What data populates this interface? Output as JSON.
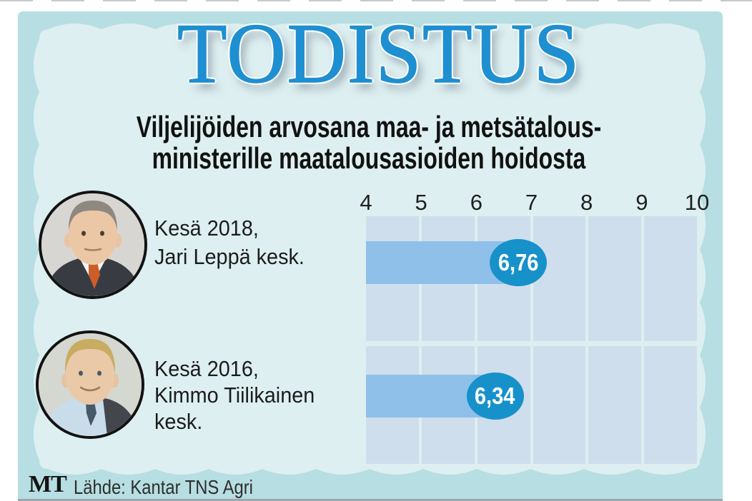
{
  "title": "TODISTUS",
  "subtitle": {
    "line1": "Viljelijöiden arvosana maa- ja metsätalous-",
    "line2": "ministerille maatalousasioiden hoidosta"
  },
  "chart_data": {
    "type": "bar",
    "orientation": "horizontal",
    "title": "TODISTUS",
    "subtitle": "Viljelijöiden arvosana maa- ja metsätalousministerille maatalousasioiden hoidosta",
    "xlim": [
      4,
      10
    ],
    "x_tick_labels": [
      "4",
      "5",
      "6",
      "7",
      "8",
      "9",
      "10"
    ],
    "grid": true,
    "legend": false,
    "categories": [
      "Kesä 2018, Jari Leppä kesk.",
      "Kesä 2016, Kimmo Tiilikainen kesk."
    ],
    "values": [
      6.76,
      6.34
    ],
    "value_labels": [
      "6,76",
      "6,34"
    ],
    "bar_color": "#8fc0e9",
    "badge_color": "#1791ca"
  },
  "rows": [
    {
      "label_lines": [
        "Kesä 2018,",
        "Jari Leppä kesk.",
        ""
      ],
      "portrait": "Jari Leppä",
      "value_label": "6,76"
    },
    {
      "label_lines": [
        "Kesä 2016,",
        "Kimmo Tiilikainen",
        "kesk."
      ],
      "portrait": "Kimmo Tiilikainen",
      "value_label": "6,34"
    }
  ],
  "footer": {
    "logo": "MT",
    "source": "Lähde: Kantar TNS Agri"
  },
  "colors": {
    "outer_frame": "#b7dee2",
    "inner_panel": "#ddeff1",
    "grid_cell": "#cfdeec",
    "bar": "#8fc0e9",
    "badge": "#1791ca",
    "title_blue": "#1e8fd1"
  }
}
